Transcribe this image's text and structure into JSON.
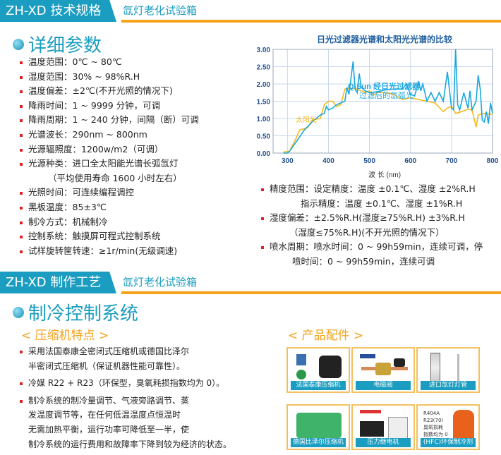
{
  "section1": {
    "title": "ZH-XD 技术规格",
    "subtitle": "氙灯老化试验箱"
  },
  "details": {
    "heading": "详细参数",
    "items": [
      "温度范围：0℃ ~ 80℃",
      "湿度范围：30% ~ 98%R.H",
      "温度偏差：±2℃(不开光照的情况下)",
      "降雨时间：1 ~ 9999 分钟，可调",
      "降雨周期：1 ~ 240 分钟，间隔（断）可调",
      "光谱波长：290nm ~ 800nm",
      "光源辐照度：1200w/m2（可调）",
      "光源种类：进口全太阳能光谱长弧氙灯",
      "（平均使用寿命 1600 小时左右）",
      "光照时间：可连续编程调控",
      "黑板温度：85±3℃",
      "制冷方式：机械制冷",
      "控制系统：触摸屏可程式控制系统",
      "试样旋转筐转速：≥1r/min(无级调速)"
    ],
    "right_items": [
      "精度范围：设定精度：温度 ±0.1℃、湿度 ±2%R.H",
      "指示精度：温度 ±0.1℃、湿度 ±1%R.H",
      "湿度偏差：±2.5%R.H(湿度≥75%R.H)  ±3%R.H",
      "（湿度≤75%R.H)(不开光照的情况下）",
      "喷水周期：喷水时间：0 ~ 99h59min，连续可调，停",
      "喷时间：0 ~ 99h59min，连续可调"
    ]
  },
  "chart_data": {
    "type": "line",
    "title": "日光过滤器光谱和太阳光光谱的比较",
    "xlabel": "波  长 (nm)",
    "ylabel": "",
    "xlim": [
      265,
      800
    ],
    "ylim": [
      0,
      3
    ],
    "xticks": [
      300,
      400,
      500,
      600,
      700,
      800
    ],
    "yticks": [
      "0.00",
      "0.50",
      "1.00",
      "1.50",
      "2.00",
      "2.50",
      "3.00"
    ],
    "grid": true,
    "series": [
      {
        "name": "Q-Sun 经日光过滤器过滤后的氙弧光",
        "color": "#1aa7e0",
        "points": [
          [
            290,
            0
          ],
          [
            300,
            0
          ],
          [
            305,
            0.05
          ],
          [
            320,
            0.3
          ],
          [
            340,
            0.65
          ],
          [
            360,
            0.9
          ],
          [
            380,
            1.1
          ],
          [
            390,
            1.15
          ],
          [
            395,
            1.35
          ],
          [
            400,
            1.25
          ],
          [
            410,
            1.3
          ],
          [
            420,
            1.4
          ],
          [
            440,
            1.5
          ],
          [
            445,
            1.9
          ],
          [
            450,
            1.7
          ],
          [
            460,
            2.65
          ],
          [
            465,
            1.85
          ],
          [
            470,
            1.75
          ],
          [
            475,
            2.3
          ],
          [
            480,
            1.9
          ],
          [
            490,
            1.8
          ],
          [
            500,
            1.75
          ],
          [
            520,
            1.78
          ],
          [
            540,
            1.83
          ],
          [
            560,
            1.85
          ],
          [
            580,
            1.85
          ],
          [
            590,
            2.0
          ],
          [
            600,
            1.7
          ],
          [
            610,
            1.65
          ],
          [
            620,
            2.08
          ],
          [
            625,
            1.8
          ],
          [
            630,
            2.0
          ],
          [
            640,
            1.5
          ],
          [
            650,
            1.75
          ],
          [
            660,
            1.5
          ],
          [
            670,
            1.75
          ],
          [
            680,
            1.5
          ],
          [
            690,
            2.35
          ],
          [
            700,
            1.3
          ],
          [
            705,
            1.25
          ],
          [
            710,
            3.0
          ],
          [
            715,
            1.4
          ],
          [
            720,
            1.25
          ],
          [
            730,
            1.75
          ],
          [
            740,
            1.3
          ],
          [
            745,
            1.8
          ],
          [
            750,
            1.25
          ],
          [
            760,
            1.5
          ],
          [
            765,
            2.25
          ],
          [
            770,
            1.85
          ],
          [
            775,
            0.95
          ],
          [
            780,
            0.9
          ],
          [
            785,
            1.2
          ],
          [
            790,
            0.85
          ],
          [
            795,
            1.45
          ],
          [
            800,
            1.15
          ]
        ]
      },
      {
        "name": "太阳光",
        "color": "#f5b81c",
        "points": [
          [
            290,
            0.03
          ],
          [
            305,
            0.05
          ],
          [
            320,
            0.4
          ],
          [
            330,
            0.67
          ],
          [
            340,
            0.7
          ],
          [
            350,
            0.75
          ],
          [
            360,
            0.95
          ],
          [
            370,
            0.98
          ],
          [
            380,
            1.0
          ],
          [
            390,
            1.4
          ],
          [
            400,
            1.5
          ],
          [
            410,
            1.5
          ],
          [
            420,
            1.35
          ],
          [
            430,
            1.4
          ],
          [
            440,
            1.85
          ],
          [
            450,
            1.88
          ],
          [
            460,
            1.87
          ],
          [
            470,
            1.85
          ],
          [
            480,
            1.8
          ],
          [
            490,
            1.75
          ],
          [
            500,
            1.8
          ],
          [
            510,
            1.68
          ],
          [
            520,
            1.75
          ],
          [
            540,
            1.75
          ],
          [
            560,
            1.7
          ],
          [
            580,
            1.55
          ],
          [
            600,
            1.6
          ],
          [
            620,
            1.55
          ],
          [
            640,
            1.5
          ],
          [
            660,
            1.45
          ],
          [
            680,
            1.2
          ],
          [
            690,
            1.3
          ],
          [
            700,
            1.35
          ],
          [
            710,
            1.15
          ],
          [
            720,
            1.18
          ],
          [
            740,
            1.27
          ],
          [
            750,
            1.25
          ],
          [
            760,
            0.75
          ],
          [
            765,
            1.1
          ],
          [
            780,
            1.15
          ],
          [
            800,
            1.12
          ]
        ]
      }
    ]
  },
  "section2": {
    "title": "ZH-XD 制作工艺",
    "subtitle": "氙灯老化试验箱"
  },
  "cooling": {
    "heading": "制冷控制系统",
    "compressor_heading": "< 压缩机特点 >",
    "parts_heading": "< 产品配件 >",
    "items": [
      "采用法国泰康全密闭式压缩机或德国比泽尔",
      "半密闭式压缩机（保证机器性能可靠性）。",
      "冷媒 R22 + R23（环保型，臭氧耗损指数均为 0）。",
      "制冷系统的制冷量调节、气液旁路调节、蒸",
      "发温度调节等，在任何低温温度点恒温时",
      "无需加热平衡，运行功率可降低至一半，使",
      "制冷系统的运行费用和故障率下降到较为经济的状态。"
    ],
    "parts": [
      "法国泰康压缩机",
      "电磁阀",
      "进口氙灯灯管",
      "德国比泽尔压缩机",
      "压力继电机",
      "(HFC)环保制冷剂"
    ],
    "refrigerant_text": [
      "R404A",
      "R23(70)",
      "臭氧损耗",
      "指数均为 0"
    ]
  }
}
